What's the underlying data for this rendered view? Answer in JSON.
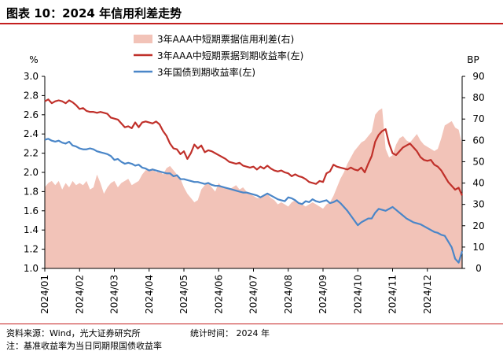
{
  "header": {
    "title": "图表 10：2024 年信用利差走势"
  },
  "footer": {
    "source": "资料来源：Wind，光大证券研究所",
    "stat_time": "统计时间：  2024 年",
    "note": "注：基准收益率为当日同期限国债收益率"
  },
  "colors": {
    "spread": "#f2c3b8",
    "cp_yield": "#c0302a",
    "gov_yield": "#4a86c8",
    "accent_rule": "#c41f1f"
  },
  "chart_data": {
    "type": "area+line",
    "title": "",
    "left_axis": {
      "unit": "%",
      "min": 1.0,
      "max": 3.0,
      "ticks": [
        "1.0",
        "1.2",
        "1.4",
        "1.6",
        "1.8",
        "2.0",
        "2.2",
        "2.4",
        "2.6",
        "2.8",
        "3.0"
      ]
    },
    "right_axis": {
      "unit": "BP",
      "min": 0,
      "max": 90,
      "ticks": [
        "0",
        "10",
        "20",
        "30",
        "40",
        "50",
        "60",
        "70",
        "80",
        "90"
      ]
    },
    "x_axis": {
      "ticks": [
        "2024/01",
        "2024/02",
        "2024/03",
        "2024/04",
        "2024/05",
        "2024/06",
        "2024/07",
        "2024/08",
        "2024/09",
        "2024/10",
        "2024/11",
        "2024/12"
      ]
    },
    "x_month_range": [
      0,
      12
    ],
    "legend": {
      "placement": "top"
    },
    "series": [
      {
        "name": "3年AAA中短期票据信用利差(右)",
        "kind": "area",
        "axis": "right",
        "x": [
          0,
          0.1,
          0.2,
          0.3,
          0.4,
          0.5,
          0.6,
          0.7,
          0.8,
          0.9,
          1.0,
          1.1,
          1.2,
          1.3,
          1.4,
          1.5,
          1.6,
          1.7,
          1.8,
          1.9,
          2.0,
          2.1,
          2.2,
          2.3,
          2.4,
          2.5,
          2.6,
          2.7,
          2.8,
          2.9,
          3.0,
          3.1,
          3.2,
          3.3,
          3.4,
          3.5,
          3.6,
          3.7,
          3.8,
          3.9,
          4.0,
          4.1,
          4.2,
          4.3,
          4.4,
          4.5,
          4.6,
          4.7,
          4.8,
          4.9,
          5.0,
          5.1,
          5.2,
          5.3,
          5.4,
          5.5,
          5.6,
          5.7,
          5.8,
          5.9,
          6.0,
          6.1,
          6.2,
          6.3,
          6.4,
          6.5,
          6.6,
          6.7,
          6.8,
          6.9,
          7.0,
          7.1,
          7.2,
          7.3,
          7.4,
          7.5,
          7.6,
          7.7,
          7.8,
          7.9,
          8.0,
          8.1,
          8.2,
          8.3,
          8.4,
          8.5,
          8.6,
          8.7,
          8.8,
          8.9,
          9.0,
          9.1,
          9.2,
          9.3,
          9.4,
          9.5,
          9.6,
          9.7,
          9.8,
          9.9,
          10.0,
          10.1,
          10.2,
          10.3,
          10.4,
          10.5,
          10.6,
          10.7,
          10.8,
          10.9,
          11.0,
          11.1,
          11.2,
          11.3,
          11.4,
          11.5,
          11.6,
          11.7,
          11.8,
          11.9,
          12.0
        ],
        "values": [
          38,
          40,
          41,
          39,
          41,
          37,
          40,
          38,
          41,
          39,
          40,
          39,
          41,
          37,
          38,
          44,
          40,
          35,
          38,
          40,
          41,
          38,
          40,
          41,
          42,
          39,
          40,
          41,
          44,
          46,
          46,
          47,
          45,
          46,
          44,
          47,
          48,
          46,
          44,
          42,
          38,
          35,
          33,
          31,
          32,
          37,
          39,
          40,
          38,
          36,
          40,
          38,
          38,
          37,
          38,
          39,
          37,
          38,
          36,
          35,
          34,
          33,
          33,
          34,
          35,
          33,
          32,
          30,
          31,
          30,
          29,
          31,
          32,
          30,
          30,
          29,
          30,
          31,
          30,
          29,
          28,
          30,
          31,
          34,
          38,
          42,
          45,
          49,
          52,
          55,
          57,
          59,
          60,
          62,
          64,
          72,
          74,
          75,
          56,
          52,
          53,
          58,
          61,
          62,
          60,
          59,
          61,
          63,
          60,
          58,
          57,
          56,
          55,
          56,
          61,
          67,
          68,
          69,
          66,
          65,
          58
        ]
      },
      {
        "name": "3年AAA中短期票据到期收益率(左)",
        "kind": "line",
        "axis": "left",
        "x": [
          0,
          0.1,
          0.2,
          0.3,
          0.4,
          0.5,
          0.6,
          0.7,
          0.8,
          0.9,
          1.0,
          1.1,
          1.2,
          1.3,
          1.4,
          1.5,
          1.6,
          1.7,
          1.8,
          1.9,
          2.0,
          2.1,
          2.2,
          2.3,
          2.4,
          2.5,
          2.6,
          2.7,
          2.8,
          2.9,
          3.0,
          3.1,
          3.2,
          3.3,
          3.4,
          3.5,
          3.6,
          3.7,
          3.8,
          3.9,
          4.0,
          4.1,
          4.2,
          4.3,
          4.4,
          4.5,
          4.6,
          4.7,
          4.8,
          4.9,
          5.0,
          5.1,
          5.2,
          5.3,
          5.4,
          5.5,
          5.6,
          5.7,
          5.8,
          5.9,
          6.0,
          6.1,
          6.2,
          6.3,
          6.4,
          6.5,
          6.6,
          6.7,
          6.8,
          6.9,
          7.0,
          7.1,
          7.2,
          7.3,
          7.4,
          7.5,
          7.6,
          7.7,
          7.8,
          7.9,
          8.0,
          8.1,
          8.2,
          8.3,
          8.4,
          8.5,
          8.6,
          8.7,
          8.8,
          8.9,
          9.0,
          9.1,
          9.2,
          9.3,
          9.4,
          9.5,
          9.6,
          9.7,
          9.8,
          9.9,
          10.0,
          10.1,
          10.2,
          10.3,
          10.4,
          10.5,
          10.6,
          10.7,
          10.8,
          10.9,
          11.0,
          11.1,
          11.2,
          11.3,
          11.4,
          11.5,
          11.6,
          11.7,
          11.8,
          11.9,
          12.0
        ],
        "values": [
          2.74,
          2.76,
          2.72,
          2.74,
          2.75,
          2.74,
          2.72,
          2.75,
          2.73,
          2.7,
          2.66,
          2.67,
          2.64,
          2.63,
          2.63,
          2.62,
          2.63,
          2.62,
          2.61,
          2.57,
          2.56,
          2.55,
          2.51,
          2.47,
          2.48,
          2.46,
          2.52,
          2.47,
          2.52,
          2.53,
          2.52,
          2.51,
          2.53,
          2.5,
          2.43,
          2.38,
          2.3,
          2.25,
          2.24,
          2.19,
          2.22,
          2.14,
          2.2,
          2.29,
          2.25,
          2.28,
          2.21,
          2.23,
          2.22,
          2.2,
          2.18,
          2.16,
          2.14,
          2.11,
          2.1,
          2.09,
          2.1,
          2.07,
          2.06,
          2.05,
          2.06,
          2.03,
          2.06,
          2.04,
          2.07,
          2.04,
          2.02,
          2.01,
          2.02,
          2.0,
          1.99,
          1.96,
          1.98,
          1.96,
          1.95,
          1.93,
          1.9,
          1.89,
          1.88,
          1.91,
          1.9,
          1.99,
          2.01,
          2.08,
          2.06,
          2.05,
          2.04,
          2.03,
          2.05,
          2.03,
          2.02,
          2.05,
          2.0,
          2.09,
          2.17,
          2.32,
          2.39,
          2.43,
          2.45,
          2.3,
          2.2,
          2.18,
          2.22,
          2.26,
          2.28,
          2.3,
          2.26,
          2.22,
          2.16,
          2.13,
          2.12,
          2.13,
          2.08,
          2.06,
          2.02,
          1.96,
          1.9,
          1.86,
          1.82,
          1.84,
          1.76
        ]
      },
      {
        "name": "3年国债到期收益率(左)",
        "kind": "line",
        "axis": "left",
        "x": [
          0,
          0.1,
          0.2,
          0.3,
          0.4,
          0.5,
          0.6,
          0.7,
          0.8,
          0.9,
          1.0,
          1.1,
          1.2,
          1.3,
          1.4,
          1.5,
          1.6,
          1.7,
          1.8,
          1.9,
          2.0,
          2.1,
          2.2,
          2.3,
          2.4,
          2.5,
          2.6,
          2.7,
          2.8,
          2.9,
          3.0,
          3.1,
          3.2,
          3.3,
          3.4,
          3.5,
          3.6,
          3.7,
          3.8,
          3.9,
          4.0,
          4.1,
          4.2,
          4.3,
          4.4,
          4.5,
          4.6,
          4.7,
          4.8,
          4.9,
          5.0,
          5.1,
          5.2,
          5.3,
          5.4,
          5.5,
          5.6,
          5.7,
          5.8,
          5.9,
          6.0,
          6.1,
          6.2,
          6.3,
          6.4,
          6.5,
          6.6,
          6.7,
          6.8,
          6.9,
          7.0,
          7.1,
          7.2,
          7.3,
          7.4,
          7.5,
          7.6,
          7.7,
          7.8,
          7.9,
          8.0,
          8.1,
          8.2,
          8.3,
          8.4,
          8.5,
          8.6,
          8.7,
          8.8,
          8.9,
          9.0,
          9.1,
          9.2,
          9.3,
          9.4,
          9.5,
          9.6,
          9.7,
          9.8,
          9.9,
          10.0,
          10.1,
          10.2,
          10.3,
          10.4,
          10.5,
          10.6,
          10.7,
          10.8,
          10.9,
          11.0,
          11.1,
          11.2,
          11.3,
          11.4,
          11.5,
          11.6,
          11.7,
          11.8,
          11.9,
          12.0
        ],
        "values": [
          2.34,
          2.35,
          2.33,
          2.32,
          2.33,
          2.31,
          2.3,
          2.32,
          2.28,
          2.27,
          2.25,
          2.24,
          2.24,
          2.25,
          2.24,
          2.22,
          2.21,
          2.2,
          2.19,
          2.17,
          2.13,
          2.14,
          2.11,
          2.09,
          2.1,
          2.09,
          2.07,
          2.08,
          2.05,
          2.04,
          2.02,
          2.03,
          2.02,
          2.01,
          2.0,
          1.99,
          1.99,
          1.96,
          1.97,
          1.93,
          1.93,
          1.92,
          1.91,
          1.9,
          1.9,
          1.89,
          1.88,
          1.89,
          1.87,
          1.86,
          1.86,
          1.85,
          1.84,
          1.83,
          1.82,
          1.81,
          1.8,
          1.79,
          1.79,
          1.78,
          1.77,
          1.76,
          1.74,
          1.76,
          1.78,
          1.76,
          1.74,
          1.72,
          1.71,
          1.7,
          1.74,
          1.73,
          1.71,
          1.68,
          1.67,
          1.7,
          1.69,
          1.72,
          1.7,
          1.69,
          1.7,
          1.71,
          1.68,
          1.69,
          1.71,
          1.68,
          1.64,
          1.6,
          1.55,
          1.5,
          1.45,
          1.48,
          1.5,
          1.52,
          1.52,
          1.58,
          1.62,
          1.61,
          1.6,
          1.62,
          1.64,
          1.61,
          1.58,
          1.55,
          1.52,
          1.5,
          1.48,
          1.47,
          1.46,
          1.44,
          1.42,
          1.4,
          1.38,
          1.37,
          1.35,
          1.34,
          1.28,
          1.22,
          1.1,
          1.06,
          1.18
        ]
      }
    ]
  }
}
